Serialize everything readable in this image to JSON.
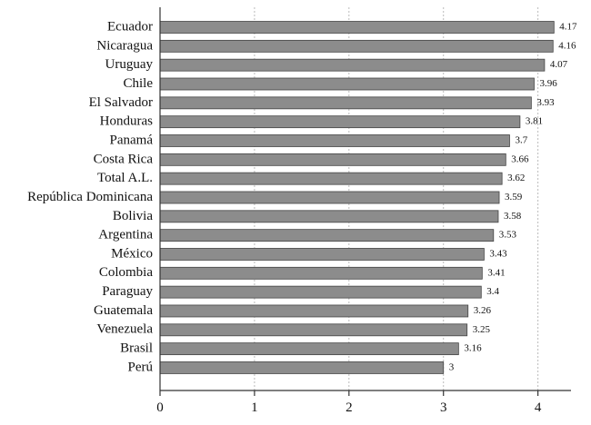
{
  "chart_data": {
    "type": "bar",
    "orientation": "horizontal",
    "categories": [
      "Ecuador",
      "Nicaragua",
      "Uruguay",
      "Chile",
      "El Salvador",
      "Honduras",
      "Panamá",
      "Costa Rica",
      "Total A.L.",
      "República Dominicana",
      "Bolivia",
      "Argentina",
      "México",
      "Colombia",
      "Paraguay",
      "Guatemala",
      "Venezuela",
      "Brasil",
      "Perú"
    ],
    "values": [
      4.17,
      4.16,
      4.07,
      3.96,
      3.93,
      3.81,
      3.7,
      3.66,
      3.62,
      3.59,
      3.58,
      3.53,
      3.43,
      3.41,
      3.4,
      3.26,
      3.25,
      3.16,
      3
    ],
    "color": "#8c8c8c",
    "xlim": [
      0,
      4.35
    ],
    "xticks": [
      0,
      1,
      2,
      3,
      4
    ],
    "grid": true
  }
}
